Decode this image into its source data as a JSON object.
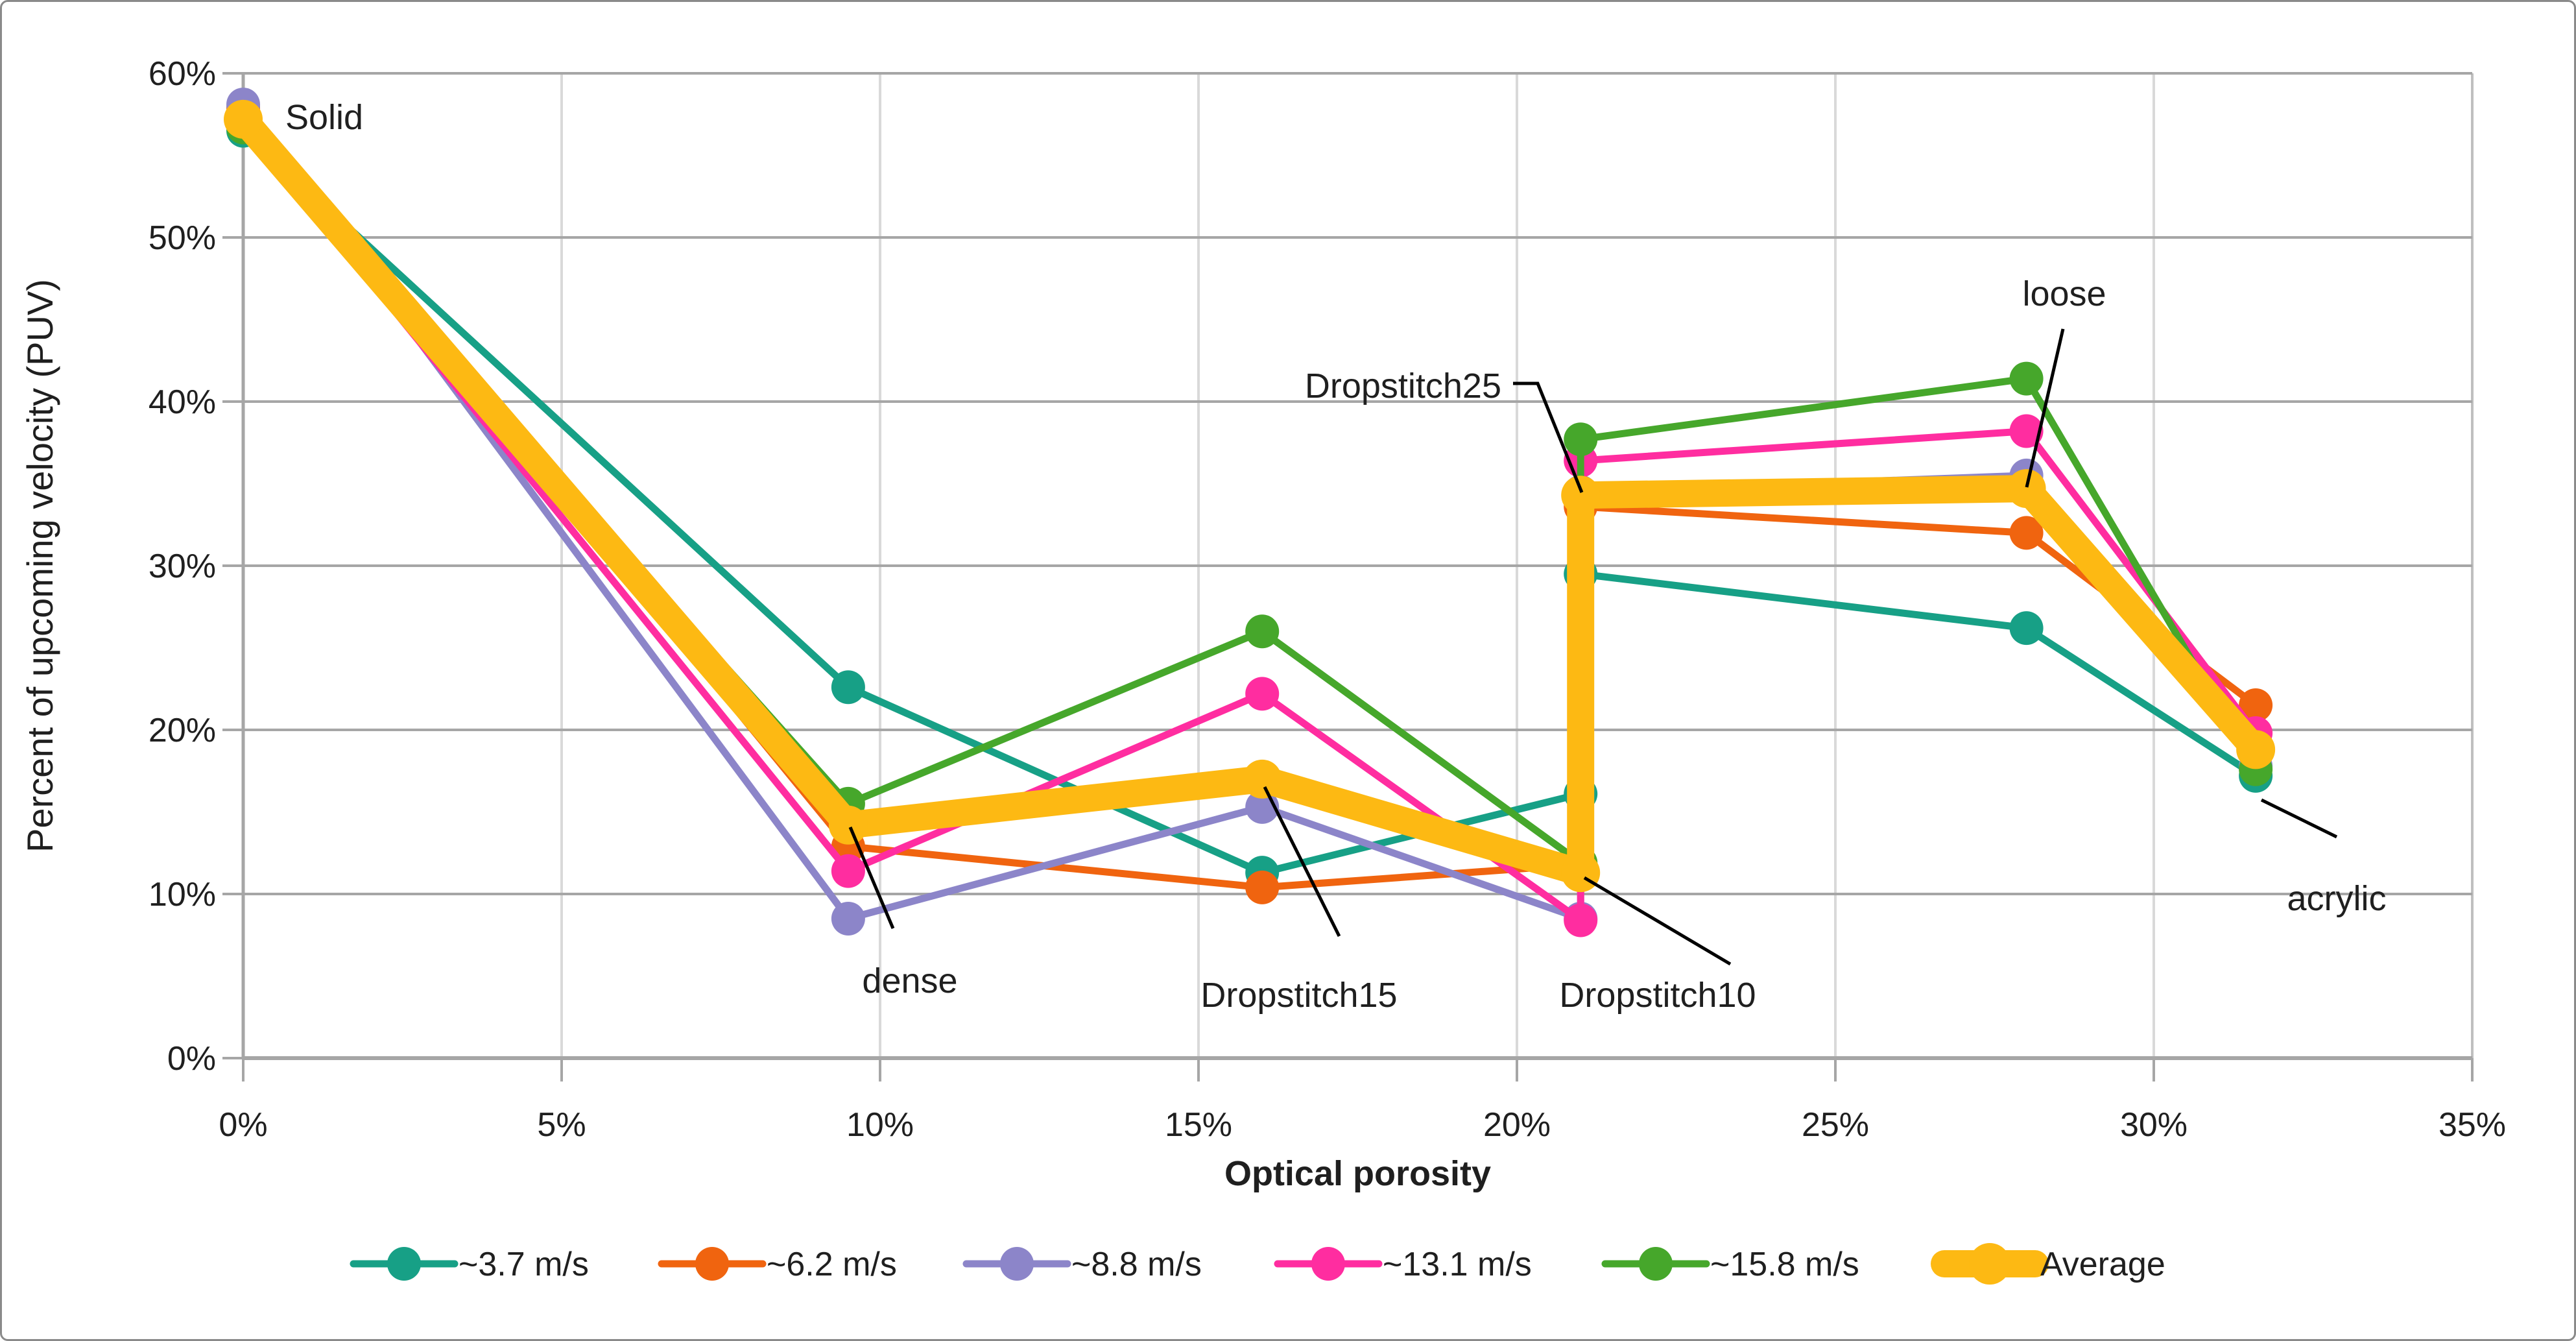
{
  "chart_data": {
    "type": "line",
    "title": "",
    "xlabel": "Optical porosity",
    "ylabel": "Percent of upcoming velocity  (PUV)",
    "xlim": [
      0,
      35
    ],
    "ylim": [
      0,
      60
    ],
    "grid": true,
    "legend_position": "bottom",
    "xticks": {
      "values": [
        0,
        5,
        10,
        15,
        20,
        25,
        30,
        35
      ],
      "labels": [
        "0%",
        "5%",
        "10%",
        "15%",
        "20%",
        "25%",
        "30%",
        "35%"
      ]
    },
    "yticks": {
      "values": [
        0,
        10,
        20,
        30,
        40,
        50,
        60
      ],
      "labels": [
        "0%",
        "10%",
        "20%",
        "30%",
        "40%",
        "50%",
        "60%"
      ]
    },
    "categories": [
      "Solid",
      "dense",
      "Dropstitch15",
      "Dropstitch10",
      "Dropstitch25",
      "loose",
      "acrylic"
    ],
    "x": [
      0,
      9.5,
      16,
      21,
      21,
      28,
      31.6
    ],
    "series": [
      {
        "name": "~3.7 m/s",
        "color": "#17A086",
        "values": [
          56.5,
          22.6,
          11.3,
          16.1,
          29.5,
          26.2,
          17.2
        ]
      },
      {
        "name": "~6.2 m/s",
        "color": "#F0640F",
        "values": [
          57.9,
          12.9,
          10.4,
          11.8,
          33.6,
          32.0,
          21.5
        ]
      },
      {
        "name": "~8.8 m/s",
        "color": "#8C85C9",
        "values": [
          58.1,
          8.5,
          15.3,
          8.5,
          34.5,
          35.5,
          17.8
        ]
      },
      {
        "name": "~13.1 m/s",
        "color": "#FF2DA0",
        "values": [
          56.9,
          11.4,
          22.2,
          8.4,
          36.4,
          38.2,
          19.8
        ]
      },
      {
        "name": "~15.8 m/s",
        "color": "#46A72B",
        "values": [
          56.7,
          15.5,
          26.0,
          11.9,
          37.7,
          41.4,
          17.6
        ]
      },
      {
        "name": "Average",
        "color": "#FDB913",
        "values": [
          57.2,
          14.2,
          17.0,
          11.3,
          34.3,
          34.7,
          18.8
        ],
        "emphasis": true
      }
    ],
    "annotations": [
      "Solid",
      "dense",
      "Dropstitch15",
      "Dropstitch10",
      "Dropstitch25",
      "loose",
      "acrylic"
    ]
  },
  "colors": {
    "gridline_major": "#A6A6A6",
    "gridline_minor": "#D9D9D9",
    "plot_right_border": "#BFBFBF",
    "axis": "#A6A6A6",
    "annotation_line": "#000000",
    "text": "#1f1f1f",
    "background": "#ffffff",
    "frame_border": "#8a8a8a"
  }
}
